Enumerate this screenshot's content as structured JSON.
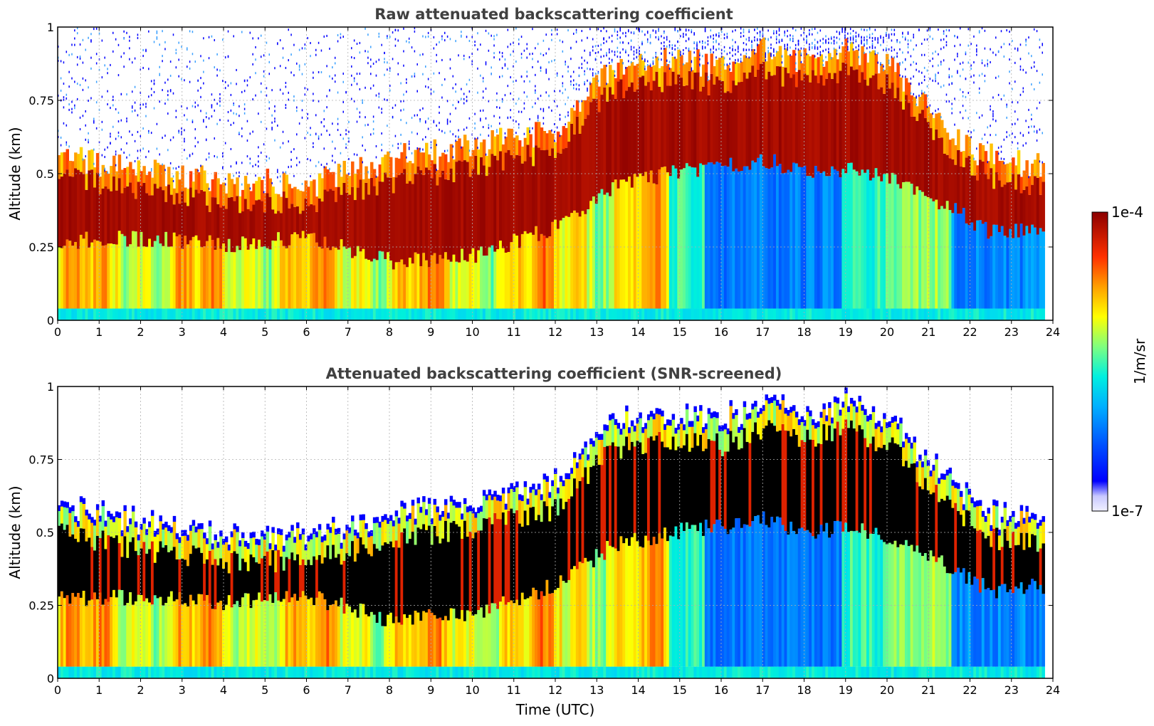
{
  "chart_data": [
    {
      "type": "heatmap",
      "title": "Raw attenuated backscattering coefficient",
      "xlabel": "",
      "ylabel": "Altitude (km)",
      "xlim": [
        0,
        24
      ],
      "ylim": [
        0,
        1
      ],
      "xticks": [
        "0",
        "1",
        "2",
        "3",
        "4",
        "5",
        "6",
        "7",
        "8",
        "9",
        "10",
        "11",
        "12",
        "13",
        "14",
        "15",
        "16",
        "17",
        "18",
        "19",
        "20",
        "21",
        "22",
        "23",
        "24"
      ],
      "yticks": [
        "0",
        "0.25",
        "0.5",
        "0.75",
        "1"
      ],
      "grid": true,
      "data_end_time": 23.8,
      "layer": {
        "description_times": [
          0,
          2,
          4,
          6,
          8,
          10,
          12,
          13.3,
          14.7,
          16,
          17,
          18,
          19,
          20,
          21.5,
          22.5,
          23.8
        ],
        "top_km": [
          0.5,
          0.44,
          0.4,
          0.4,
          0.47,
          0.52,
          0.58,
          0.78,
          0.82,
          0.8,
          0.85,
          0.82,
          0.85,
          0.8,
          0.58,
          0.48,
          0.45
        ],
        "base_km": [
          0.27,
          0.28,
          0.26,
          0.28,
          0.2,
          0.22,
          0.32,
          0.45,
          0.5,
          0.52,
          0.55,
          0.5,
          0.52,
          0.48,
          0.38,
          0.3,
          0.32
        ]
      }
    },
    {
      "type": "heatmap",
      "title": "Attenuated backscattering coefficient (SNR-screened)",
      "xlabel": "Time (UTC)",
      "ylabel": "Altitude (km)",
      "xlim": [
        0,
        24
      ],
      "ylim": [
        0,
        1
      ],
      "xticks": [
        "0",
        "1",
        "2",
        "3",
        "4",
        "5",
        "6",
        "7",
        "8",
        "9",
        "10",
        "11",
        "12",
        "13",
        "14",
        "15",
        "16",
        "17",
        "18",
        "19",
        "20",
        "21",
        "22",
        "23",
        "24"
      ],
      "yticks": [
        "0",
        "0.25",
        "0.5",
        "0.75",
        "1"
      ],
      "grid": true,
      "data_end_time": 23.8,
      "screened": true
    }
  ],
  "colorbar": {
    "label": "1/m/sr",
    "max_label": "1e-4",
    "min_label": "1e-7",
    "colormap": [
      "#f0f0ff",
      "#0000ff",
      "#0070ff",
      "#00d8ff",
      "#7fff7f",
      "#ffff00",
      "#ff8c00",
      "#ff2000",
      "#8b0000"
    ]
  },
  "colors": {
    "title": "#404040",
    "grid": "#b0b0b0",
    "saturated": "#000000"
  }
}
